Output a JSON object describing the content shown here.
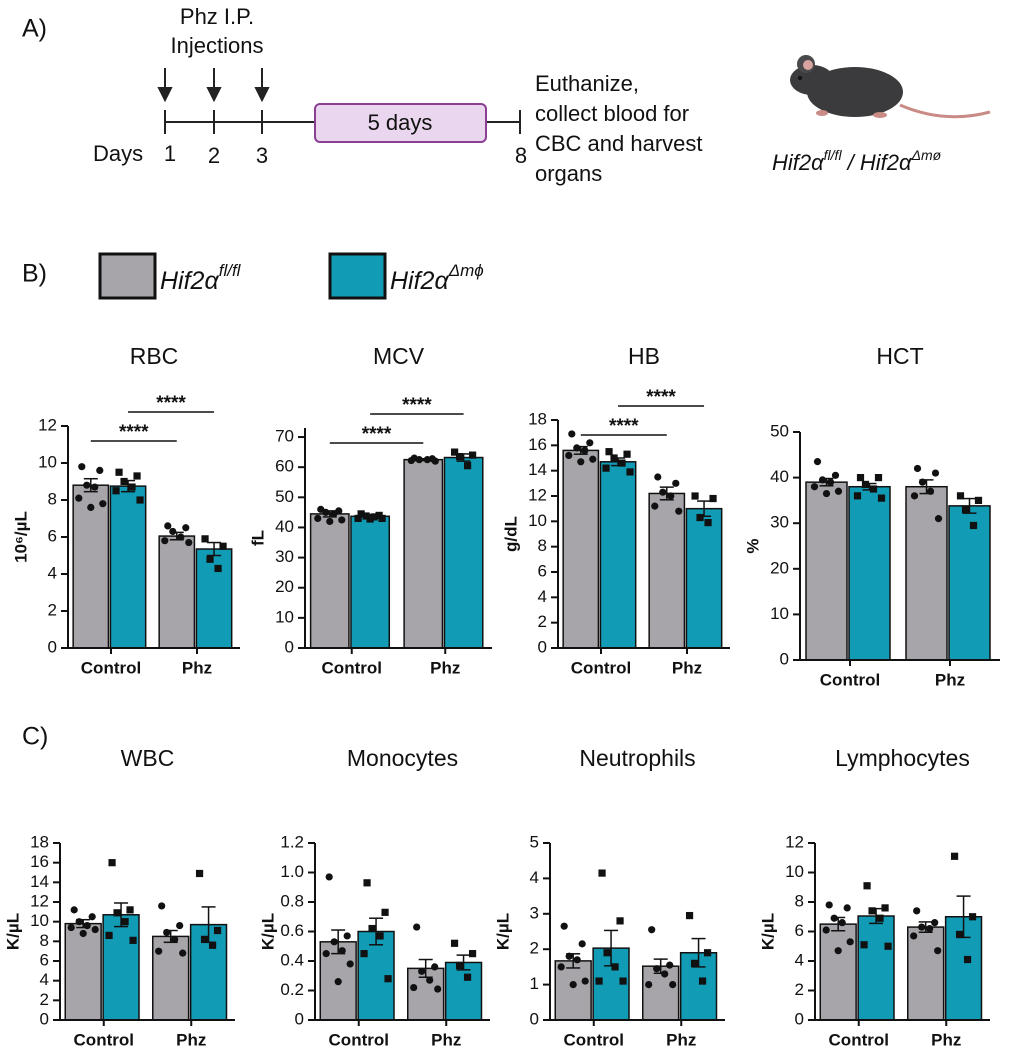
{
  "panel_labels": [
    "A)",
    "B)",
    "C)"
  ],
  "timeline": {
    "injection_lines": [
      "Phz I.P.",
      "Injections"
    ],
    "days_label": "Days",
    "days": [
      "1",
      "2",
      "3",
      "8"
    ],
    "interval": "5 days",
    "outcome_lines": [
      "Euthanize,",
      "collect blood for",
      "CBC and harvest",
      "organs"
    ],
    "genotype": [
      "Hif2α",
      "fl/fl",
      " / Hif2α",
      "Δmø"
    ]
  },
  "legend": [
    {
      "name": "Hif2α",
      "sup": "fl/fl",
      "color": "#a7a5aa"
    },
    {
      "name": "Hif2α",
      "sup": "Δmϕ",
      "color": "#129bb4"
    }
  ],
  "chart_data": [
    {
      "type": "bar",
      "title": "RBC",
      "ylabel": "10⁶/µL",
      "categories": [
        "Control",
        "Phz"
      ],
      "ylim": [
        0,
        12
      ],
      "yticks": [
        0,
        2,
        4,
        6,
        8,
        10,
        12
      ],
      "series": [
        {
          "values": [
            8.8,
            6.05
          ],
          "errors": [
            0.35,
            0.2
          ],
          "points": [
            [
              9.8,
              9.6,
              8.8,
              8.7,
              8.1,
              7.8,
              7.6
            ],
            [
              6.6,
              6.5,
              6.3,
              6.0,
              5.8,
              5.7
            ]
          ]
        },
        {
          "values": [
            8.75,
            5.35
          ],
          "errors": [
            0.3,
            0.35
          ],
          "points": [
            [
              9.5,
              9.3,
              9.0,
              8.7,
              8.5,
              8.0
            ],
            [
              5.9,
              5.5,
              4.8,
              4.3
            ]
          ]
        }
      ],
      "significance": [
        {
          "label": "****",
          "from": [
            0,
            0
          ],
          "to": [
            1,
            0
          ]
        },
        {
          "label": "****",
          "from": [
            0,
            1
          ],
          "to": [
            1,
            1
          ]
        }
      ]
    },
    {
      "type": "bar",
      "title": "MCV",
      "ylabel": "fL",
      "categories": [
        "Control",
        "Phz"
      ],
      "ylim": [
        0,
        73
      ],
      "yticks": [
        0,
        10,
        20,
        30,
        40,
        50,
        60,
        70
      ],
      "series": [
        {
          "values": [
            44.5,
            62.5
          ],
          "errors": [
            1,
            0.3
          ],
          "points": [
            [
              46,
              45.5,
              45,
              44.5,
              43,
              42.5,
              42
            ],
            [
              63,
              62.8,
              62.5,
              62.5,
              62.2,
              62
            ]
          ]
        },
        {
          "values": [
            43.7,
            63.2
          ],
          "errors": [
            0.5,
            1.2
          ],
          "points": [
            [
              44.5,
              44,
              43.8,
              43.5,
              43,
              43,
              42.8
            ],
            [
              65,
              64,
              63.5,
              60.5
            ]
          ]
        }
      ],
      "significance": [
        {
          "label": "****",
          "from": [
            0,
            0
          ],
          "to": [
            1,
            0
          ]
        },
        {
          "label": "****",
          "from": [
            0,
            1
          ],
          "to": [
            1,
            1
          ]
        }
      ]
    },
    {
      "type": "bar",
      "title": "HB",
      "ylabel": "g/dL",
      "categories": [
        "Control",
        "Phz"
      ],
      "ylim": [
        0,
        18
      ],
      "yticks": [
        0,
        2,
        4,
        6,
        8,
        10,
        12,
        14,
        16,
        18
      ],
      "series": [
        {
          "values": [
            15.6,
            12.2
          ],
          "errors": [
            0.3,
            0.5
          ],
          "points": [
            [
              16.9,
              16.2,
              15.8,
              15.6,
              15.2,
              14.9,
              14.7
            ],
            [
              13.5,
              13,
              12.3,
              12,
              11.2,
              10.8
            ]
          ]
        },
        {
          "values": [
            14.7,
            11.0
          ],
          "errors": [
            0.3,
            0.6
          ],
          "points": [
            [
              15.5,
              15.3,
              15.0,
              14.6,
              14.2,
              13.9
            ],
            [
              12,
              11.8,
              10.3,
              9.9
            ]
          ]
        }
      ],
      "significance": [
        {
          "label": "****",
          "from": [
            0,
            0
          ],
          "to": [
            1,
            0
          ]
        },
        {
          "label": "****",
          "from": [
            0,
            1
          ],
          "to": [
            1,
            1
          ]
        }
      ]
    },
    {
      "type": "bar",
      "title": "HCT",
      "ylabel": "%",
      "categories": [
        "Control",
        "Phz"
      ],
      "ylim": [
        0,
        50
      ],
      "yticks": [
        0,
        10,
        20,
        30,
        40,
        50
      ],
      "series": [
        {
          "values": [
            39,
            38
          ],
          "errors": [
            0.8,
            1.5
          ],
          "points": [
            [
              43.5,
              40.5,
              39.5,
              39,
              38,
              37,
              36.5
            ],
            [
              42,
              41,
              39,
              37,
              36,
              31
            ]
          ]
        },
        {
          "values": [
            38,
            33.8
          ],
          "errors": [
            0.7,
            1.6
          ],
          "points": [
            [
              40,
              40,
              38.5,
              37.5,
              36,
              35.5
            ],
            [
              36,
              35,
              33,
              29.5
            ]
          ]
        }
      ]
    },
    {
      "type": "bar",
      "title": "WBC",
      "ylabel": "K/µL",
      "categories": [
        "Control",
        "Phz"
      ],
      "ylim": [
        0,
        18
      ],
      "yticks": [
        0,
        2,
        4,
        6,
        8,
        10,
        12,
        14,
        16,
        18
      ],
      "series": [
        {
          "values": [
            9.8,
            8.5
          ],
          "errors": [
            0.4,
            0.6
          ],
          "points": [
            [
              11.2,
              10.5,
              10,
              9.6,
              9.4,
              9.2,
              8.8
            ],
            [
              11.6,
              9.6,
              8.9,
              8.2,
              7.0,
              6.8
            ]
          ]
        },
        {
          "values": [
            10.7,
            9.7
          ],
          "errors": [
            1.2,
            1.8
          ],
          "points": [
            [
              16,
              11.2,
              10.9,
              10,
              8.6,
              8.1
            ],
            [
              14.9,
              9.1,
              8.2,
              7.6
            ]
          ]
        }
      ]
    },
    {
      "type": "bar",
      "title": "Monocytes",
      "ylabel": "K/µL",
      "categories": [
        "Control",
        "Phz"
      ],
      "ylim": [
        0,
        1.2
      ],
      "yticks": [
        0,
        0.2,
        0.4,
        0.6,
        0.8,
        {
          "value": 1,
          "label": "1.0"
        },
        1.2
      ],
      "series": [
        {
          "values": [
            0.53,
            0.35
          ],
          "errors": [
            0.08,
            0.06
          ],
          "points": [
            [
              0.97,
              0.57,
              0.53,
              0.47,
              0.45,
              0.38,
              0.26
            ],
            [
              0.63,
              0.36,
              0.33,
              0.27,
              0.22,
              0.21
            ]
          ]
        },
        {
          "values": [
            0.6,
            0.39
          ],
          "errors": [
            0.09,
            0.05
          ],
          "points": [
            [
              0.93,
              0.73,
              0.62,
              0.57,
              0.45,
              0.28
            ],
            [
              0.52,
              0.45,
              0.37,
              0.29
            ]
          ]
        }
      ]
    },
    {
      "type": "bar",
      "title": "Neutrophils",
      "ylabel": "K/µL",
      "categories": [
        "Control",
        "Phz"
      ],
      "ylim": [
        0,
        5
      ],
      "yticks": [
        0,
        1,
        2,
        3,
        4,
        5
      ],
      "series": [
        {
          "values": [
            1.67,
            1.52
          ],
          "errors": [
            0.2,
            0.2
          ],
          "points": [
            [
              2.65,
              2.15,
              1.8,
              1.7,
              1.5,
              1.1,
              1.0
            ],
            [
              2.55,
              1.55,
              1.45,
              1.3,
              1.0,
              1.0
            ]
          ]
        },
        {
          "values": [
            2.03,
            1.9
          ],
          "errors": [
            0.5,
            0.4
          ],
          "points": [
            [
              4.15,
              2.8,
              1.9,
              1.5,
              1.1,
              1.1
            ],
            [
              2.95,
              1.9,
              1.6,
              1.1
            ]
          ]
        }
      ]
    },
    {
      "type": "bar",
      "title": "Lymphocytes",
      "ylabel": "K/µL",
      "categories": [
        "Control",
        "Phz"
      ],
      "ylim": [
        0,
        12
      ],
      "yticks": [
        0,
        2,
        4,
        6,
        8,
        10,
        12
      ],
      "series": [
        {
          "values": [
            6.5,
            6.3
          ],
          "errors": [
            0.45,
            0.35
          ],
          "points": [
            [
              7.8,
              7.6,
              6.9,
              6.6,
              6.1,
              5.3,
              4.7
            ],
            [
              7.4,
              6.6,
              6.3,
              6.2,
              5.7,
              4.7
            ]
          ]
        },
        {
          "values": [
            7.05,
            7.0
          ],
          "errors": [
            0.5,
            1.4
          ],
          "points": [
            [
              9.1,
              7.6,
              7.4,
              6.9,
              5.1,
              5.0
            ],
            [
              11.1,
              7.0,
              5.8,
              4.1
            ]
          ]
        }
      ]
    }
  ]
}
